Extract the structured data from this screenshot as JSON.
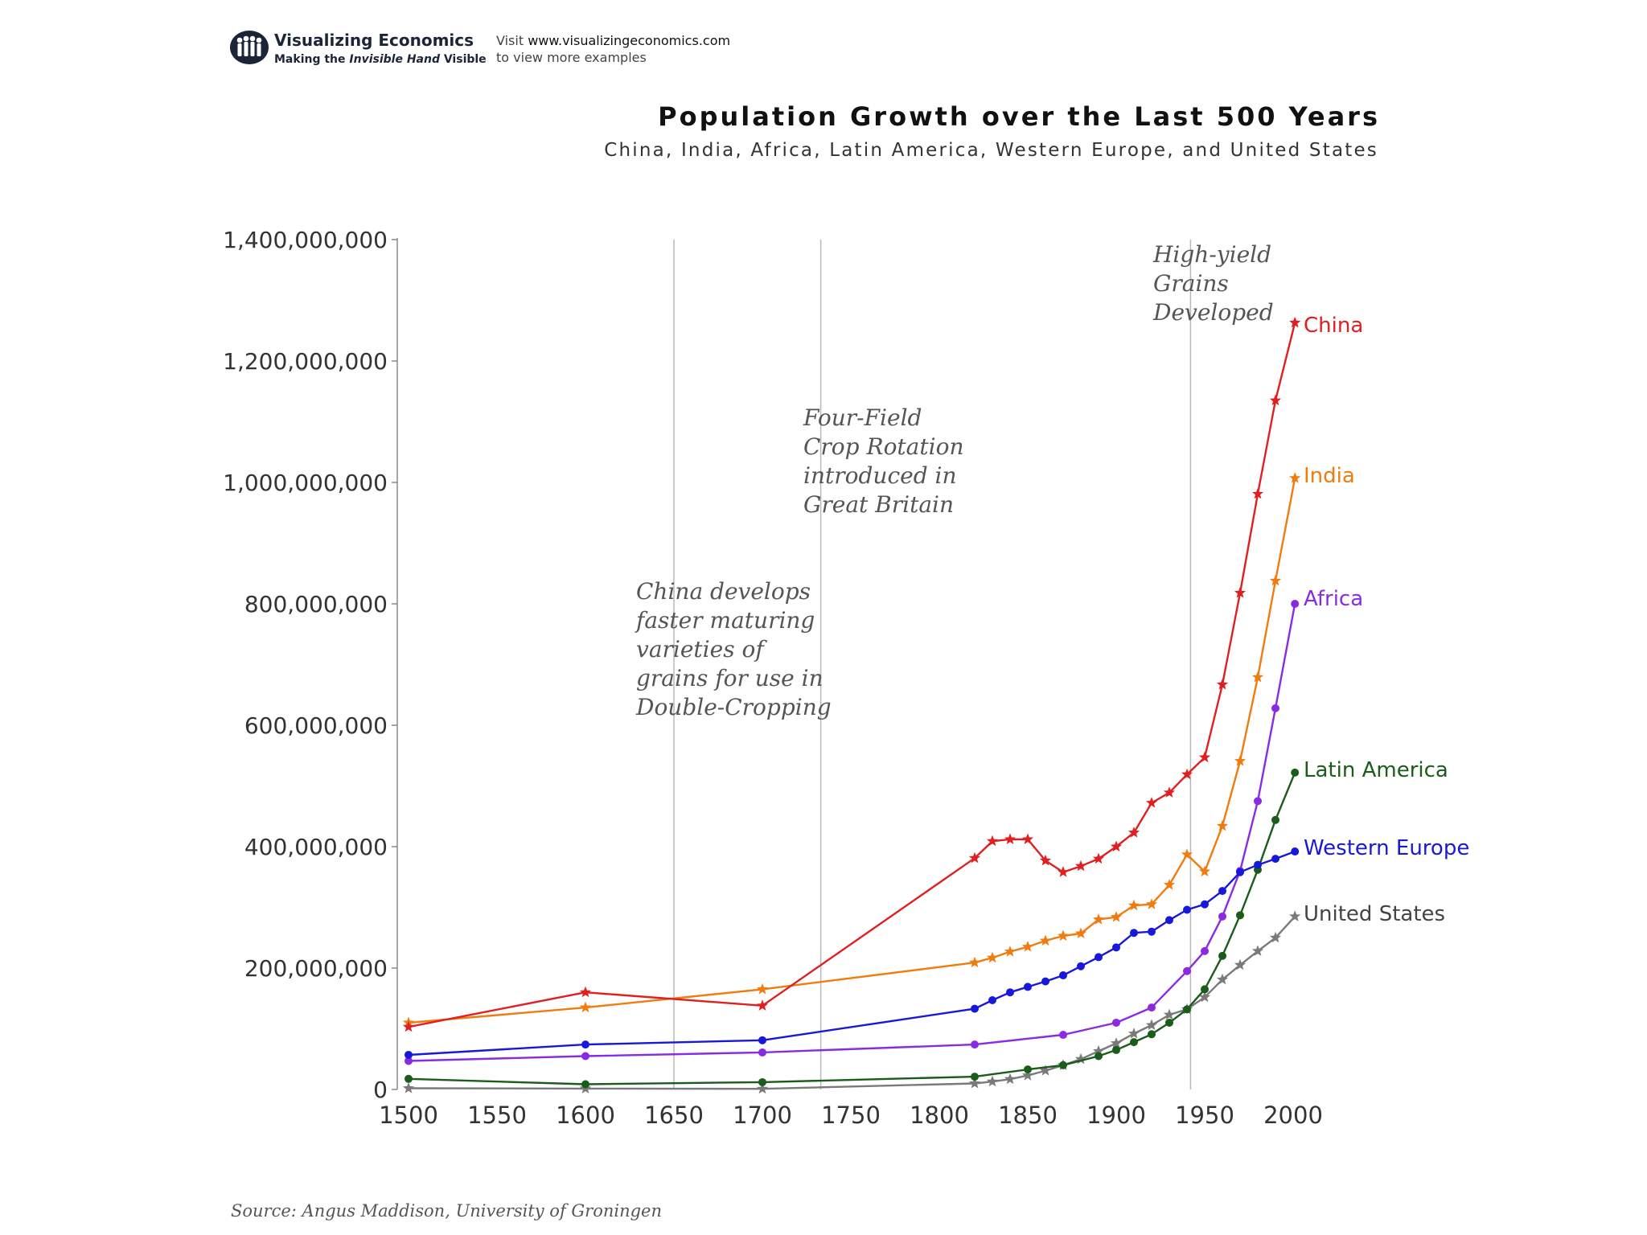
{
  "header": {
    "brand_name": "Visualizing Economics",
    "brand_tag_prefix": "Making the",
    "brand_tag_italic": "Invisible Hand",
    "brand_tag_suffix": "Visible",
    "visit_line1_prefix": "Visit",
    "visit_url": "www.visualizingeconomics.com",
    "visit_line2": "to view more examples"
  },
  "chart_data": {
    "type": "line",
    "title": "Population Growth over the Last 500 Years",
    "subtitle": "China, India, Africa, Latin America, Western Europe, and United States",
    "xlabel": "",
    "ylabel": "",
    "xlim": [
      1500,
      2000
    ],
    "ylim": [
      0,
      1400000000
    ],
    "y_ticks": [
      0,
      200000000,
      400000000,
      600000000,
      800000000,
      1000000000,
      1200000000,
      1400000000
    ],
    "y_tick_labels": [
      "0",
      "200,000,000",
      "400,000,000",
      "600,000,000",
      "800,000,000",
      "1,000,000,000",
      "1,200,000,000",
      "1,400,000,000"
    ],
    "x_ticks": [
      1500,
      1550,
      1600,
      1650,
      1700,
      1750,
      1800,
      1850,
      1900,
      1950,
      2000
    ],
    "x_tick_labels": [
      "1500",
      "1550",
      "1600",
      "1650",
      "1700",
      "1750",
      "1800",
      "1850",
      "1900",
      "1950",
      "2000"
    ],
    "grid": false,
    "annotations": [
      {
        "x": 1650,
        "lines": [
          "China develops",
          "faster maturing",
          "varieties of",
          "grains for use in",
          "Double-Cropping"
        ]
      },
      {
        "x": 1733,
        "lines": [
          "Four-Field",
          "Crop Rotation",
          "introduced in",
          "Great Britain"
        ]
      },
      {
        "x": 1942,
        "lines": [
          "High-yield",
          "Grains",
          "Developed"
        ]
      }
    ],
    "series": [
      {
        "name": "China",
        "color": "#e02020",
        "marker": "star",
        "x": [
          1500,
          1600,
          1700,
          1820,
          1830,
          1840,
          1850,
          1860,
          1870,
          1880,
          1890,
          1900,
          1910,
          1920,
          1930,
          1940,
          1950,
          1960,
          1970,
          1980,
          1990,
          2001
        ],
        "values": [
          103000000,
          160000000,
          138000000,
          381000000,
          409000000,
          412000000,
          412000000,
          377000000,
          358000000,
          368000000,
          380000000,
          400000000,
          423000000,
          472000000,
          489000000,
          519000000,
          547000000,
          667000000,
          818000000,
          981000000,
          1135000000,
          1263000000
        ]
      },
      {
        "name": "India",
        "color": "#f07c10",
        "marker": "star",
        "x": [
          1500,
          1600,
          1700,
          1820,
          1830,
          1840,
          1850,
          1860,
          1870,
          1880,
          1890,
          1900,
          1910,
          1920,
          1930,
          1940,
          1950,
          1960,
          1970,
          1980,
          1990,
          2001
        ],
        "values": [
          110000000,
          135000000,
          165000000,
          209000000,
          217000000,
          227000000,
          235000000,
          245000000,
          253000000,
          257000000,
          280000000,
          284000000,
          303000000,
          305000000,
          337000000,
          387000000,
          359000000,
          434000000,
          541000000,
          679000000,
          838000000,
          1007000000
        ]
      },
      {
        "name": "Africa",
        "color": "#8a2be2",
        "marker": "dot",
        "x": [
          1500,
          1600,
          1700,
          1820,
          1870,
          1900,
          1920,
          1940,
          1950,
          1960,
          1970,
          1980,
          1990,
          2001
        ],
        "values": [
          47000000,
          55000000,
          61000000,
          74000000,
          90000000,
          110000000,
          135000000,
          195000000,
          228000000,
          285000000,
          360000000,
          475000000,
          628000000,
          800000000
        ]
      },
      {
        "name": "Latin America",
        "color": "#1a5c1a",
        "marker": "dot",
        "x": [
          1500,
          1600,
          1700,
          1820,
          1850,
          1870,
          1890,
          1900,
          1910,
          1920,
          1930,
          1940,
          1950,
          1960,
          1970,
          1980,
          1990,
          2001
        ],
        "values": [
          17500000,
          8600000,
          12000000,
          21000000,
          33000000,
          40000000,
          55000000,
          65000000,
          78000000,
          91000000,
          110000000,
          132000000,
          165000000,
          220000000,
          287000000,
          362000000,
          444000000,
          522000000
        ]
      },
      {
        "name": "Western Europe",
        "color": "#1818dd",
        "marker": "dot",
        "x": [
          1500,
          1600,
          1700,
          1820,
          1830,
          1840,
          1850,
          1860,
          1870,
          1880,
          1890,
          1900,
          1910,
          1920,
          1930,
          1940,
          1950,
          1960,
          1970,
          1980,
          1990,
          2001
        ],
        "values": [
          57000000,
          74000000,
          81000000,
          133000000,
          147000000,
          160000000,
          169000000,
          178000000,
          188000000,
          203000000,
          218000000,
          234000000,
          258000000,
          260000000,
          279000000,
          296000000,
          305000000,
          327000000,
          358000000,
          370000000,
          380000000,
          392000000
        ]
      },
      {
        "name": "United States",
        "color": "#7a7a7a",
        "marker": "star",
        "x": [
          1500,
          1600,
          1700,
          1820,
          1830,
          1840,
          1850,
          1860,
          1870,
          1880,
          1890,
          1900,
          1910,
          1920,
          1930,
          1940,
          1950,
          1960,
          1970,
          1980,
          1990,
          2001
        ],
        "values": [
          2000000,
          1500000,
          1000000,
          10000000,
          13000000,
          17000000,
          23000000,
          31000000,
          40000000,
          50000000,
          63000000,
          76000000,
          92000000,
          106000000,
          123000000,
          132000000,
          152000000,
          181000000,
          205000000,
          228000000,
          250000000,
          285000000
        ]
      }
    ]
  },
  "footer": {
    "source": "Source: Angus Maddison, University of Groningen"
  }
}
